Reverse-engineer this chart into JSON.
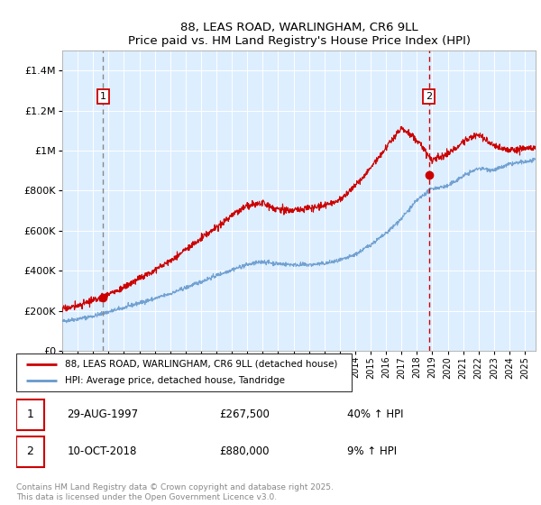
{
  "title": "88, LEAS ROAD, WARLINGHAM, CR6 9LL",
  "subtitle": "Price paid vs. HM Land Registry's House Price Index (HPI)",
  "ylim": [
    0,
    1500000
  ],
  "xlim_start": 1995.0,
  "xlim_end": 2025.7,
  "yticks": [
    0,
    200000,
    400000,
    600000,
    800000,
    1000000,
    1200000,
    1400000
  ],
  "ytick_labels": [
    "£0",
    "£200K",
    "£400K",
    "£600K",
    "£800K",
    "£1M",
    "£1.2M",
    "£1.4M"
  ],
  "sale1_x": 1997.66,
  "sale1_y": 267500,
  "sale1_label": "1",
  "sale1_date": "29-AUG-1997",
  "sale1_price": "£267,500",
  "sale1_hpi": "40% ↑ HPI",
  "sale2_x": 2018.78,
  "sale2_y": 880000,
  "sale2_label": "2",
  "sale2_date": "10-OCT-2018",
  "sale2_price": "£880,000",
  "sale2_hpi": "9% ↑ HPI",
  "red_color": "#cc0000",
  "blue_color": "#6699cc",
  "plot_bg": "#ddeeff",
  "grid_color": "#ffffff",
  "legend_line1": "88, LEAS ROAD, WARLINGHAM, CR6 9LL (detached house)",
  "legend_line2": "HPI: Average price, detached house, Tandridge",
  "copyright": "Contains HM Land Registry data © Crown copyright and database right 2025.\nThis data is licensed under the Open Government Licence v3.0.",
  "xticks": [
    1995,
    1996,
    1997,
    1998,
    1999,
    2000,
    2001,
    2002,
    2003,
    2004,
    2005,
    2006,
    2007,
    2008,
    2009,
    2010,
    2011,
    2012,
    2013,
    2014,
    2015,
    2016,
    2017,
    2018,
    2019,
    2020,
    2021,
    2022,
    2023,
    2024,
    2025
  ],
  "key_years_hpi": [
    1995,
    1996,
    1997,
    1998,
    1999,
    2000,
    2001,
    2002,
    2003,
    2004,
    2005,
    2006,
    2007,
    2008,
    2009,
    2010,
    2011,
    2012,
    2013,
    2014,
    2015,
    2016,
    2017,
    2018,
    2019,
    2020,
    2021,
    2022,
    2023,
    2024,
    2025.7
  ],
  "key_hpi": [
    148000,
    160000,
    175000,
    195000,
    215000,
    238000,
    260000,
    285000,
    315000,
    345000,
    375000,
    405000,
    430000,
    445000,
    435000,
    430000,
    430000,
    435000,
    450000,
    480000,
    530000,
    585000,
    660000,
    750000,
    810000,
    820000,
    870000,
    910000,
    900000,
    930000,
    950000
  ],
  "key_years_red": [
    1995,
    1996,
    1997,
    1998,
    1999,
    2000,
    2001,
    2002,
    2003,
    2004,
    2005,
    2006,
    2007,
    2008,
    2009,
    2010,
    2011,
    2012,
    2013,
    2014,
    2015,
    2016,
    2017,
    2018,
    2019,
    2020,
    2021,
    2022,
    2023,
    2024,
    2025.7
  ],
  "key_red": [
    210000,
    225000,
    250000,
    280000,
    315000,
    360000,
    400000,
    445000,
    500000,
    555000,
    610000,
    670000,
    720000,
    730000,
    700000,
    700000,
    710000,
    720000,
    750000,
    820000,
    910000,
    1010000,
    1110000,
    1050000,
    950000,
    980000,
    1040000,
    1080000,
    1020000,
    1000000,
    1010000
  ],
  "noise_seed_hpi": 42,
  "noise_seed_red": 17,
  "noise_scale_hpi": 5000,
  "noise_scale_red": 8000,
  "n_points": 1500
}
